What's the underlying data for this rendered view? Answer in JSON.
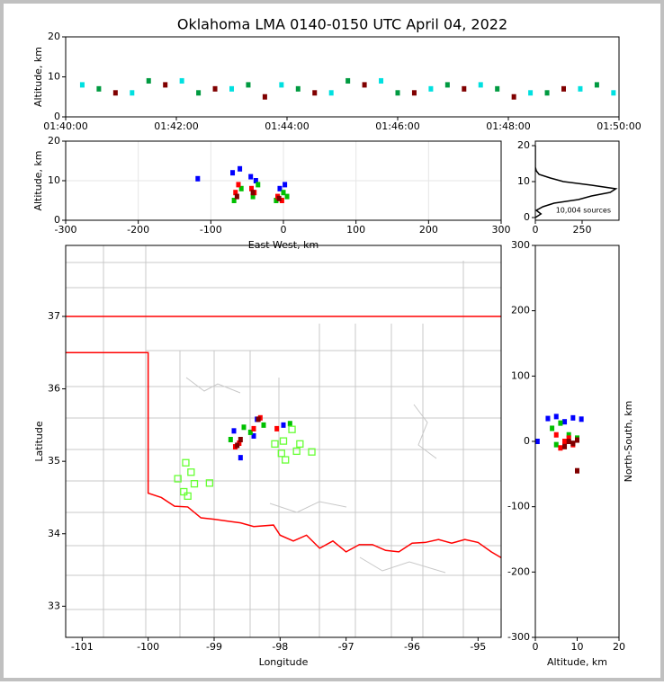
{
  "chart_data": [
    {
      "type": "scatter",
      "title": "Oklahoma LMA 0140-0150 UTC April 04, 2022",
      "ylabel": "Altitude, km",
      "xlim": [
        0,
        10
      ],
      "xticks": [
        {
          "value": 0,
          "label": "01:40:00"
        },
        {
          "value": 2,
          "label": "01:42:00"
        },
        {
          "value": 4,
          "label": "01:44:00"
        },
        {
          "value": 6,
          "label": "01:46:00"
        },
        {
          "value": 8,
          "label": "01:48:00"
        },
        {
          "value": 10,
          "label": "01:50:00"
        }
      ],
      "ylim": [
        0,
        20
      ],
      "yticks": [
        0,
        10,
        20
      ],
      "grid": false,
      "series": [
        {
          "color": "#00e0e0",
          "marker": "square",
          "x": [
            0.3,
            1.2,
            2.1,
            3.0,
            3.9,
            4.8,
            5.7,
            6.6,
            7.5,
            8.4,
            9.3,
            9.9
          ],
          "y": [
            8,
            6,
            9,
            7,
            8,
            6,
            9,
            7,
            8,
            6,
            7,
            6
          ]
        },
        {
          "color": "#009a40",
          "marker": "square",
          "x": [
            0.6,
            1.5,
            2.4,
            3.3,
            4.2,
            5.1,
            6.0,
            6.9,
            7.8,
            8.7,
            9.6
          ],
          "y": [
            7,
            9,
            6,
            8,
            7,
            9,
            6,
            8,
            7,
            6,
            8
          ]
        },
        {
          "color": "#800000",
          "marker": "square",
          "x": [
            0.9,
            1.8,
            2.7,
            3.6,
            4.5,
            5.4,
            6.3,
            7.2,
            8.1,
            9.0
          ],
          "y": [
            6,
            8,
            7,
            5,
            6,
            8,
            6,
            7,
            5,
            7
          ]
        }
      ]
    },
    {
      "type": "scatter",
      "xlabel": "East-West, km",
      "ylabel": "Altitude, km",
      "xlim": [
        -300,
        300
      ],
      "xticks": [
        -300,
        -200,
        -100,
        0,
        100,
        200,
        300
      ],
      "ylim": [
        0,
        20
      ],
      "yticks": [
        0,
        10,
        20
      ],
      "grid": true,
      "series": [
        {
          "color": "#0000ff",
          "marker": "square",
          "x": [
            -70,
            -60,
            -45,
            -38,
            -5,
            2,
            -118
          ],
          "y": [
            12,
            13,
            11,
            10,
            8,
            9,
            10.5
          ]
        },
        {
          "color": "#00c000",
          "marker": "square",
          "x": [
            -68,
            -58,
            -42,
            -35,
            -10,
            0,
            5
          ],
          "y": [
            5,
            8,
            6,
            9,
            5,
            7,
            6
          ]
        },
        {
          "color": "#ff0000",
          "marker": "square",
          "x": [
            -66,
            -62,
            -44,
            -40,
            -8,
            -2
          ],
          "y": [
            7,
            9,
            8,
            7,
            6,
            5
          ]
        },
        {
          "color": "#800000",
          "marker": "square",
          "x": [
            -64,
            -42,
            -6
          ],
          "y": [
            6,
            7,
            5.5
          ]
        }
      ]
    },
    {
      "type": "line",
      "annotation": "10,004 sources",
      "xlim": [
        0,
        447
      ],
      "xticks": [
        0,
        250
      ],
      "ylim": [
        -0.75,
        21.25
      ],
      "yticks": [
        0,
        10,
        20
      ],
      "grid": false,
      "series": [
        {
          "color": "#000000",
          "marker": "line",
          "x": [
            0,
            30,
            5,
            40,
            100,
            230,
            300,
            400,
            430,
            300,
            150,
            80,
            20,
            5,
            0,
            0
          ],
          "y": [
            0,
            1,
            2,
            3,
            4,
            5,
            6,
            7,
            8,
            9,
            10,
            11,
            12,
            13,
            14,
            20
          ]
        }
      ]
    },
    {
      "type": "map",
      "xlabel": "Longitude",
      "ylabel": "Latitude",
      "xlim": [
        -101.25,
        -94.65
      ],
      "xticks": [
        -101,
        -100,
        -99,
        -98,
        -97,
        -96,
        -95
      ],
      "ylim": [
        32.57,
        37.98
      ],
      "yticks": [
        33,
        34,
        35,
        36,
        37
      ],
      "grid": false,
      "series": [
        {
          "color": "#ff0000",
          "marker": "line",
          "x": [
            -101.25,
            -94.65,
            null,
            -101.25,
            -100,
            -100,
            -99.8,
            -99.6,
            -99.4,
            -99.2,
            -99,
            -98.6,
            -98.4,
            -98.1,
            -98,
            -97.8,
            -97.6,
            -97.4,
            -97.2,
            -97,
            -96.8,
            -96.6,
            -96.4,
            -96.2,
            -96,
            -95.8,
            -95.6,
            -95.4,
            -95.2,
            -95,
            -94.8,
            -94.65
          ],
          "y": [
            37,
            37,
            null,
            36.5,
            36.5,
            34.56,
            34.5,
            34.38,
            34.37,
            34.22,
            34.2,
            34.15,
            34.1,
            34.12,
            33.98,
            33.9,
            33.98,
            33.8,
            33.9,
            33.75,
            33.85,
            33.85,
            33.77,
            33.75,
            33.87,
            33.88,
            33.92,
            33.87,
            33.92,
            33.88,
            33.75,
            33.67
          ]
        },
        {
          "color": "#0000ff",
          "marker": "square",
          "x": [
            -98.7,
            -98.35,
            -97.95,
            -98.6,
            -98.4
          ],
          "y": [
            35.42,
            35.58,
            35.5,
            35.05,
            35.35
          ]
        },
        {
          "color": "#00c000",
          "marker": "square",
          "x": [
            -98.55,
            -98.25,
            -97.85,
            -98.75,
            -98.45
          ],
          "y": [
            35.47,
            35.5,
            35.52,
            35.3,
            35.4
          ]
        },
        {
          "color": "#ff0000",
          "marker": "square",
          "x": [
            -98.62,
            -98.3,
            -98.05,
            -98.68,
            -98.4
          ],
          "y": [
            35.25,
            35.6,
            35.45,
            35.2,
            35.45
          ]
        },
        {
          "color": "#800000",
          "marker": "square",
          "x": [
            -98.65,
            -98.33,
            -98.6
          ],
          "y": [
            35.22,
            35.58,
            35.3
          ]
        },
        {
          "color": "#66ff33",
          "marker": "hollow-square",
          "x": [
            -99.43,
            -99.35,
            -99.55,
            -99.3,
            -99.46,
            -99.4,
            -99.07,
            -98.08,
            -97.95,
            -97.82,
            -97.7,
            -97.75,
            -97.98,
            -97.92,
            -97.52
          ],
          "y": [
            34.98,
            34.85,
            34.76,
            34.69,
            34.58,
            34.52,
            34.7,
            35.24,
            35.28,
            35.44,
            35.24,
            35.14,
            35.11,
            35.02,
            35.13
          ]
        }
      ]
    },
    {
      "type": "scatter",
      "xlabel": "Altitude, km",
      "ylabel": "North-South, km",
      "ylabel_side": "right",
      "xlim": [
        0,
        20
      ],
      "xticks": [
        0,
        10,
        20
      ],
      "ylim": [
        -300,
        300
      ],
      "yticks": [
        -300,
        -200,
        -100,
        0,
        100,
        200,
        300
      ],
      "grid": false,
      "series": [
        {
          "color": "#0000ff",
          "marker": "square",
          "x": [
            3,
            5,
            7,
            9,
            11,
            0.5
          ],
          "y": [
            35,
            38,
            30,
            36,
            34,
            0
          ]
        },
        {
          "color": "#00c000",
          "marker": "square",
          "x": [
            4,
            6,
            8,
            10,
            5
          ],
          "y": [
            20,
            28,
            10,
            5,
            -5
          ]
        },
        {
          "color": "#ff0000",
          "marker": "square",
          "x": [
            5,
            7,
            9,
            6,
            8
          ],
          "y": [
            10,
            0,
            -5,
            -10,
            5
          ]
        },
        {
          "color": "#800000",
          "marker": "square",
          "x": [
            8,
            9,
            10,
            7,
            10
          ],
          "y": [
            0,
            -3,
            2,
            -8,
            -45
          ]
        }
      ]
    }
  ]
}
